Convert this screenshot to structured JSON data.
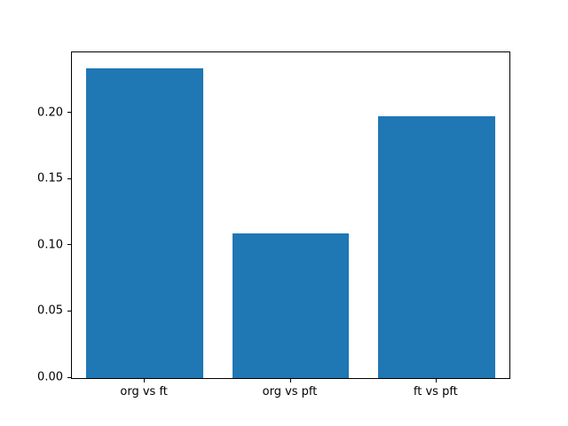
{
  "chart_data": {
    "type": "bar",
    "title": "",
    "xlabel": "",
    "ylabel": "",
    "categories": [
      "org vs ft",
      "org vs pft",
      "ft vs pft"
    ],
    "values": [
      0.234,
      0.109,
      0.198
    ],
    "yticks": [
      0.0,
      0.05,
      0.1,
      0.15,
      0.2
    ],
    "ytick_labels": [
      "0.00",
      "0.05",
      "0.10",
      "0.15",
      "0.20"
    ],
    "ylim": [
      0,
      0.246
    ],
    "bar_color": "#1f77b4",
    "bar_width_fraction": 0.8,
    "grid": false,
    "legend": "none",
    "background_color": "#ffffff",
    "axis_color": "#000000"
  }
}
